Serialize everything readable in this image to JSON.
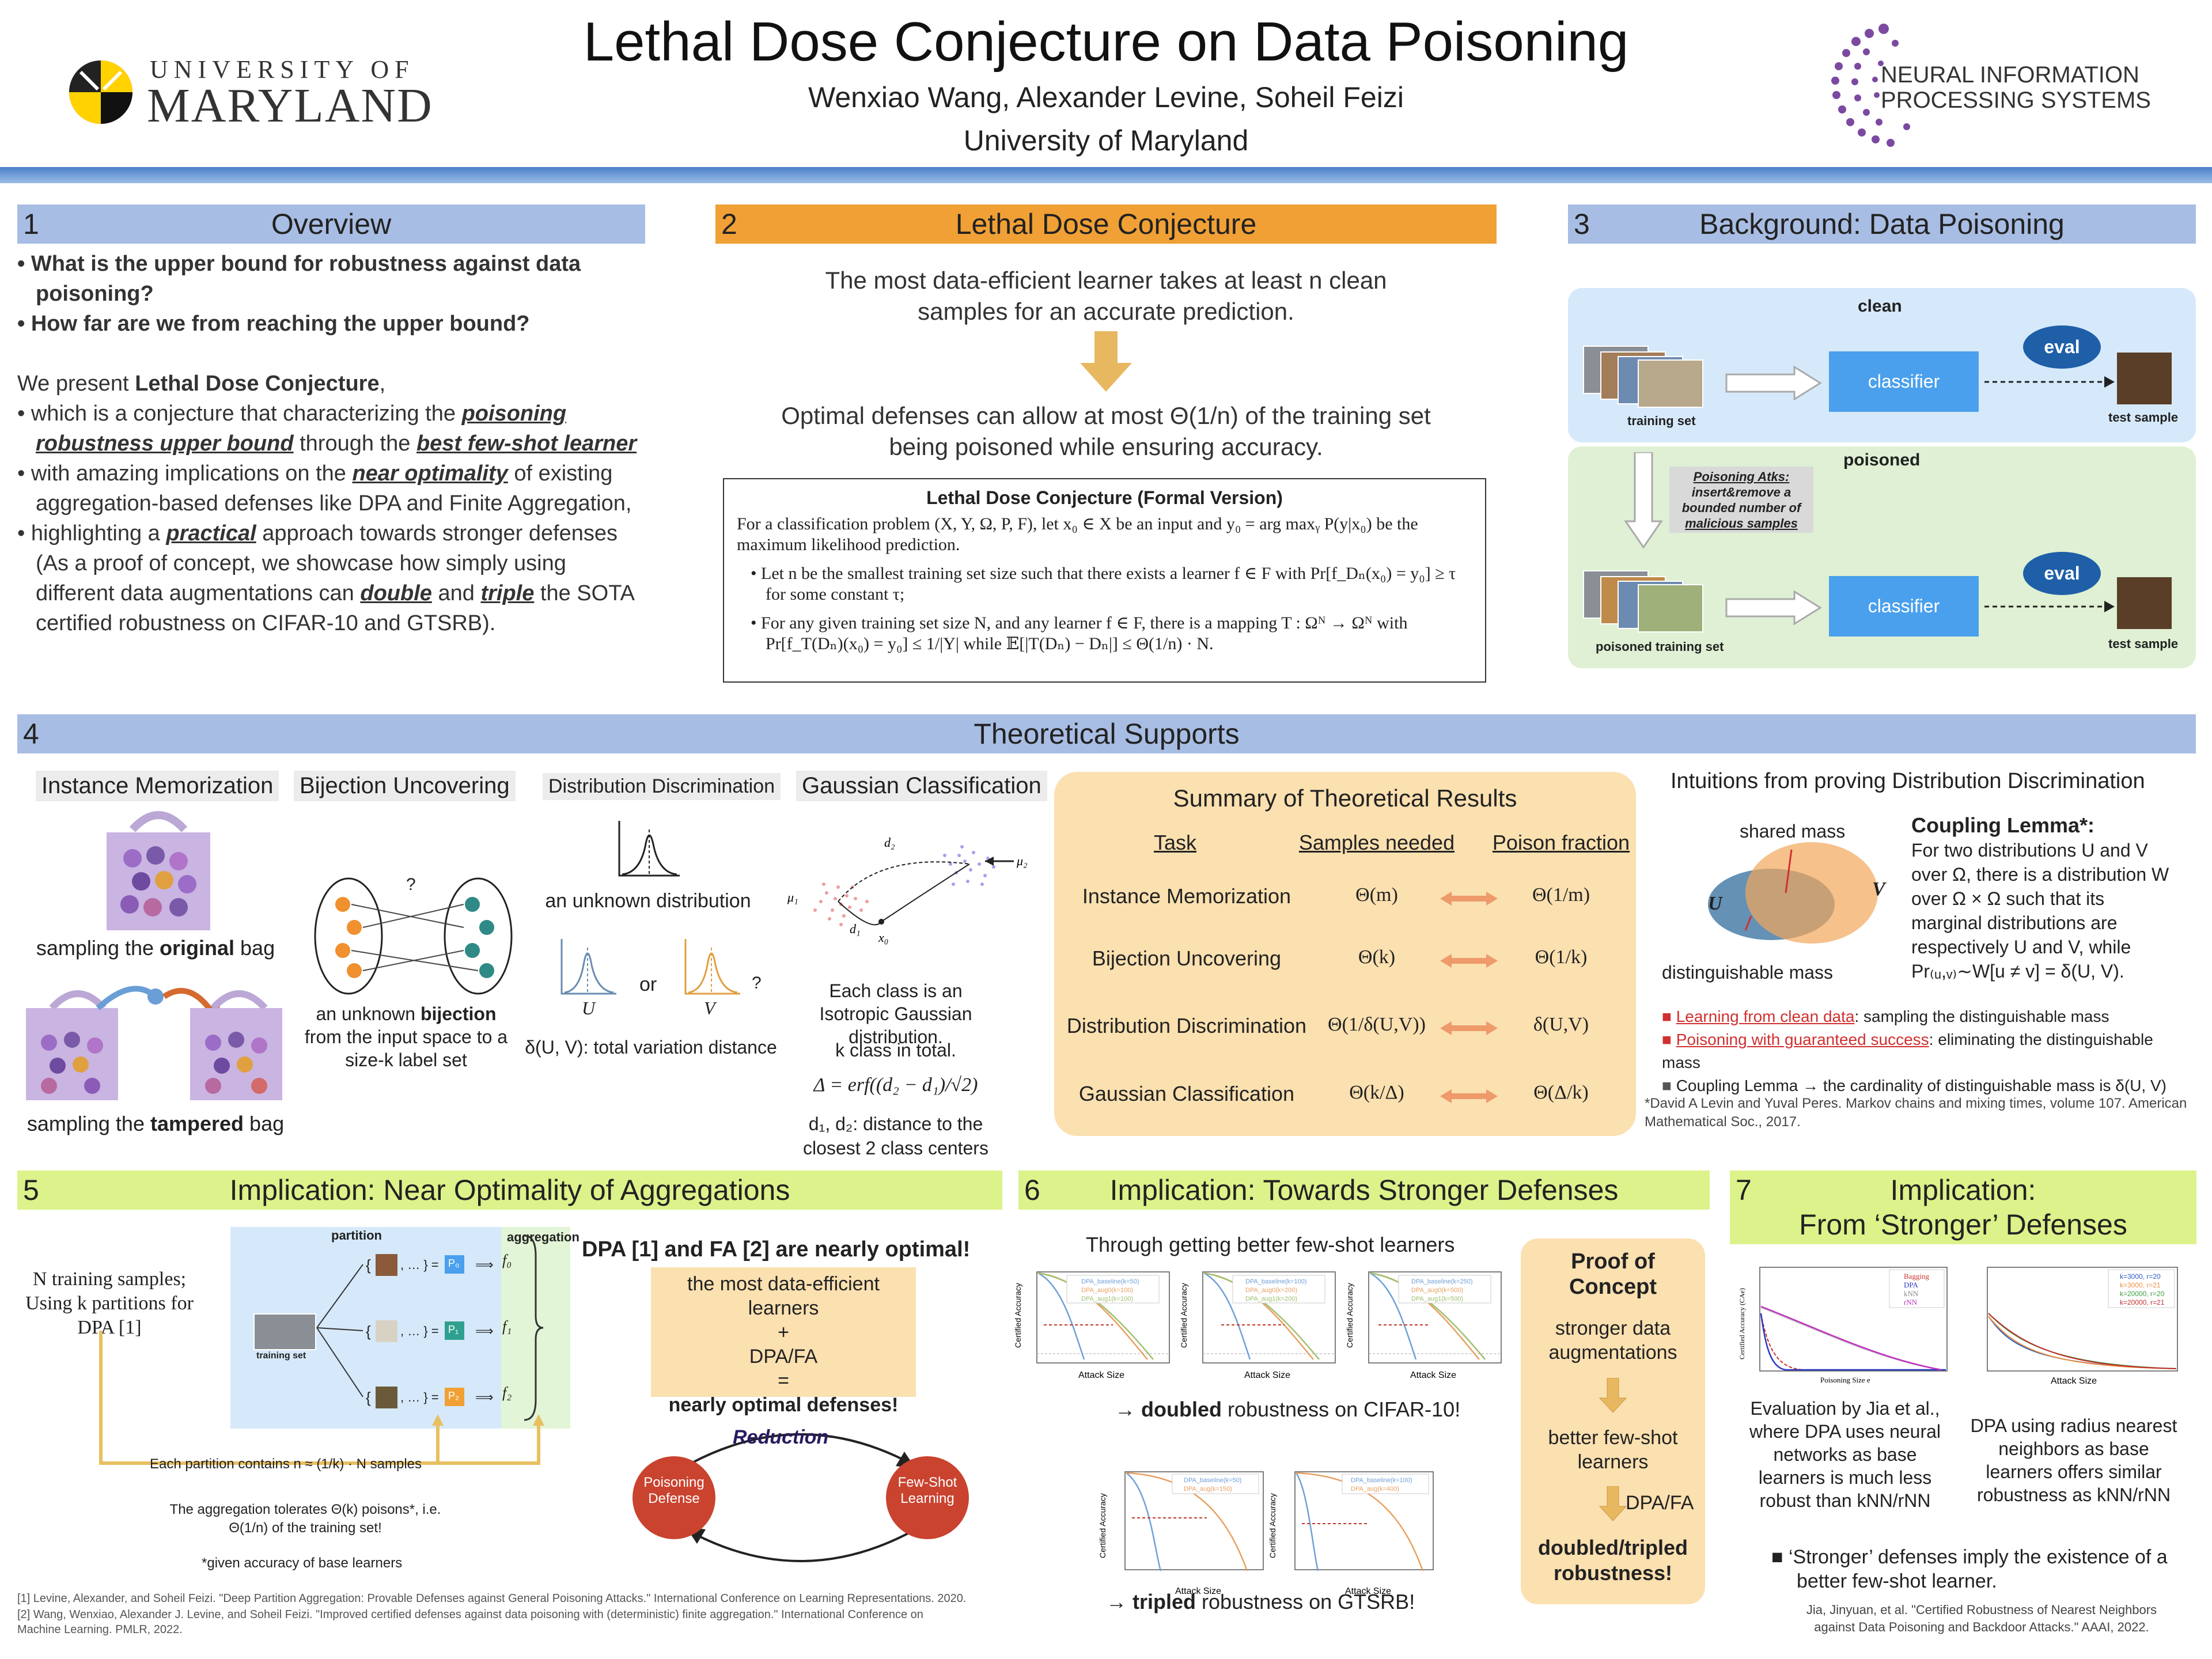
{
  "header": {
    "title": "Lethal Dose Conjecture on Data Poisoning",
    "authors": "Wenxiao Wang, Alexander Levine, Soheil Feizi",
    "affiliation": "University of Maryland",
    "umd_logo_line1": "UNIVERSITY OF",
    "umd_logo_line2": "MARYLAND",
    "neurips_line1": "NEURAL INFORMATION",
    "neurips_line2": "PROCESSING SYSTEMS"
  },
  "s1": {
    "num": "1",
    "title": "Overview",
    "q1": "• What is the upper bound for robustness against data poisoning?",
    "q2": "• How far are we from reaching the upper bound?",
    "present_pre": "We present ",
    "present_bold": "Lethal Dose Conjecture",
    "present_post": ",",
    "b1_pre": "• which is a conjecture that characterizing the ",
    "b1_e1": "poisoning robustness upper bound",
    "b1_mid": " through the ",
    "b1_e2": "best few-shot learner",
    "b2_pre": "• with amazing implications on the ",
    "b2_e": "near optimality",
    "b2_post": " of existing aggregation-based defenses like DPA and Finite Aggregation,",
    "b3_pre": "• highlighting a ",
    "b3_e": "practical",
    "b3_mid": " approach towards stronger defenses (As a proof of concept, we showcase how simply using different data augmentations can ",
    "b3_e2": "double",
    "b3_and": " and ",
    "b3_e3": "triple",
    "b3_post": " the SOTA certified robustness on CIFAR-10 and GTSRB)."
  },
  "s2": {
    "num": "2",
    "title": "Lethal Dose Conjecture",
    "line1": "The most data-efficient learner takes at least n clean samples for an accurate prediction.",
    "line2": "Optimal defenses can allow at most Θ(1/n) of the training set being poisoned while ensuring accuracy.",
    "formal_title": "Lethal Dose Conjecture (Formal Version)",
    "formal_p": "For a classification problem (X, Y, Ω, P, F), let x₀ ∈ X be an input and y₀ = arg maxᵧ P(y|x₀) be the maximum likelihood prediction.",
    "formal_b1": "Let n be the smallest training set size such that there exists a learner f ∈ F with Pr[f_Dₙ(x₀) = y₀] ≥ τ for some constant τ;",
    "formal_b2": "For any given training set size N, and any learner f ∈ F, there is a mapping T : Ωᴺ → Ωᴺ with Pr[f_T(Dₙ)(x₀) = y₀] ≤ 1/|Y| while 𝔼[|T(Dₙ) − Dₙ|] ≤ Θ(1/n) · N."
  },
  "s3": {
    "num": "3",
    "title": "Background: Data Poisoning",
    "clean": "clean",
    "poisoned": "poisoned",
    "training_set": "training set",
    "poisoned_training_set": "poisoned training set",
    "classifier": "classifier",
    "eval": "eval",
    "test_sample": "test sample",
    "atk_l1": "Poisoning Atks:",
    "atk_l2": "insert&remove a",
    "atk_l3": "bounded number of",
    "atk_l4": "malicious samples"
  },
  "s4": {
    "num": "4",
    "title": "Theoretical Supports",
    "t1": "Instance Memorization",
    "t2": "Bijection Uncovering",
    "t3": "Distribution Discrimination",
    "t4": "Gaussian Classification",
    "mem_a_pre": "sampling the ",
    "mem_a_b": "original",
    "mem_a_post": " bag",
    "mem_b_pre": "sampling the ",
    "mem_b_b": "tampered",
    "mem_b_post": " bag",
    "bij_pre": "an unknown ",
    "bij_b": "bijection",
    "bij_post": "from the input space to a size-k label set",
    "dd_unknown": "an unknown distribution",
    "dd_or": "or",
    "dd_q": "?",
    "dd_tv": "δ(U, V): total variation distance",
    "gc_1": "Each class is an Isotropic Gaussian distribution.",
    "gc_2": "k class in total.",
    "gc_3": "Δ = erf((d₂ − d₁)/√2)",
    "gc_4": "d₁, d₂: distance to the closest 2 class centers",
    "summary_title": "Summary of Theoretical Results",
    "col_task": "Task",
    "col_samples": "Samples needed",
    "col_poison": "Poison fraction",
    "rows": [
      {
        "task": "Instance Memorization",
        "samples": "Θ(m)",
        "poison": "Θ(1/m)"
      },
      {
        "task": "Bijection Uncovering",
        "samples": "Θ(k)",
        "poison": "Θ(1/k)"
      },
      {
        "task": "Distribution Discrimination",
        "samples": "Θ(1/δ(U,V))",
        "poison": "δ(U,V)"
      },
      {
        "task": "Gaussian Classification",
        "samples": "Θ(k/Δ)",
        "poison": "Θ(Δ/k)"
      }
    ],
    "int_title": "Intuitions from proving Distribution Discrimination",
    "shared_mass": "shared mass",
    "dist_mass": "distinguishable mass",
    "cl_title": "Coupling Lemma*:",
    "cl_body": "For two distributions U and V over Ω, there is a distribution W over Ω × Ω such that its marginal distributions are respectively U and V, while Pr₍ᵤ,ᵥ₎∼W[u ≠ v] = δ(U, V).",
    "ib1_red": "Learning from clean data",
    "ib1_post": ": sampling the distinguishable mass",
    "ib2_red": "Poisoning with guaranteed success",
    "ib2_post": ": eliminating the distinguishable mass",
    "ib3": "Coupling Lemma → the cardinality of distinguishable mass is δ(U, V)",
    "cite": "*David A Levin and Yuval Peres. Markov chains and mixing times, volume 107. American Mathematical Soc., 2017."
  },
  "s5": {
    "num": "5",
    "title": "Implication: Near Optimality of Aggregations",
    "left": "N training samples; Using k partitions for DPA [1]",
    "partition": "partition",
    "aggregation": "aggregation",
    "training_set": "training set",
    "p0": "P₀",
    "p1": "P₁",
    "p2": "P₂",
    "f0": "f₀",
    "f1": "f₁",
    "f2": "f₂",
    "each": "Each partition contains n ≈ (1/k) · N samples",
    "tolerates": "The aggregation tolerates Θ(k) poisons*, i.e. Θ(1/n) of the training set!",
    "given": "*given accuracy of base learners",
    "optimal": "DPA [1] and FA [2] are nearly optimal!",
    "eq1": "the most data-efficient learners",
    "eq2": "+",
    "eq3": "DPA/FA",
    "eq4": "=",
    "eq5": "nearly optimal defenses!",
    "reduction": "Reduction",
    "poison_def": "Poisoning Defense",
    "fewshot": "Few-Shot Learning",
    "ref1": "[1] Levine, Alexander, and Soheil Feizi. \"Deep Partition Aggregation: Provable Defenses against General Poisoning Attacks.\" International Conference on Learning Representations. 2020.",
    "ref2": "[2] Wang, Wenxiao, Alexander J. Levine, and Soheil Feizi. \"Improved certified defenses against data poisoning with (deterministic) finite aggregation.\" International Conference on Machine Learning. PMLR, 2022."
  },
  "s6": {
    "num": "6",
    "title": "Implication: Towards Stronger Defenses",
    "through": "Through getting better few-shot learners",
    "cifar_b": "doubled",
    "cifar_post": " robustness on CIFAR-10!",
    "gtsrb_b": "tripled",
    "gtsrb_post": " robustness on GTSRB!",
    "ylabel": "Certified Accuracy",
    "xlabel": "Attack Size",
    "poc_title": "Proof of Concept",
    "poc_1": "stronger data augmentations",
    "poc_2": "better few-shot learners",
    "poc_3": "DPA/FA",
    "poc_4": "doubled/tripled robustness!",
    "legends": [
      [
        "DPA_baseline(k=50)",
        "DPA_aug0(k=100)",
        "DPA_aug1(k=100)"
      ],
      [
        "DPA_baseline(k=100)",
        "DPA_aug0(k=200)",
        "DPA_aug1(k=200)"
      ],
      [
        "DPA_baseline(k=250)",
        "DPA_aug0(k=500)",
        "DPA_aug1(k=500)"
      ],
      [
        "DPA_baseline(k=50)",
        "DPA_aug(k=150)"
      ],
      [
        "DPA_baseline(k=100)",
        "DPA_aug(k=400)"
      ]
    ]
  },
  "s7": {
    "num": "7",
    "title1": "Implication:",
    "title2": "From ‘Stronger’ Defenses",
    "leg_left": [
      "Bagging",
      "DPA",
      "kNN",
      "rNN"
    ],
    "leg_right": [
      "k=3000, r=20",
      "k=3000, r=21",
      "k=20000, r=20",
      "k=20000, r=21"
    ],
    "xl_left": "Poisoning Size e",
    "yl_left": "Certified Accuracy (CAe)",
    "xl_right": "Attack Size",
    "cap_left": "Evaluation by Jia et al., where DPA uses neural networks as base learners is much less robust than kNN/rNN",
    "cap_right": "DPA using radius nearest neighbors as base learners offers similar robustness as kNN/rNN",
    "bullet": "‘Stronger’ defenses imply the existence of a better few-shot learner.",
    "cite": "Jia, Jinyuan, et al. \"Certified Robustness of Nearest Neighbors against Data Poisoning and Backdoor Attacks.\" AAAI, 2022."
  },
  "colors": {
    "accent_blue": "#a8bde3",
    "accent_orange": "#f0a035",
    "accent_green": "#dcf28a",
    "peach": "#fbe0b0",
    "classifier": "#4aa0ec",
    "eval": "#1e5fa8",
    "reduction": "#c9432f"
  }
}
